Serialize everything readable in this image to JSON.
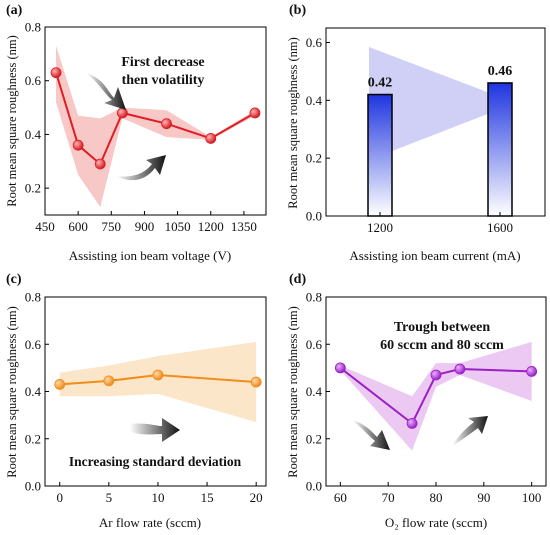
{
  "chart_data": [
    {
      "id": "a",
      "panel_label": "(a)",
      "type": "line",
      "xlabel": "Assisting ion beam voltage (V)",
      "ylabel": "Root mean square roughness (nm)",
      "xlim": [
        450,
        1450
      ],
      "ylim": [
        0.1,
        0.8
      ],
      "xticks": [
        "450",
        "600",
        "750",
        "900",
        "1050",
        "1200",
        "1350"
      ],
      "yticks": [
        "0.2",
        "0.4",
        "0.6",
        "0.8"
      ],
      "x": [
        500,
        600,
        700,
        800,
        1000,
        1200,
        1400
      ],
      "values": [
        0.63,
        0.36,
        0.29,
        0.48,
        0.44,
        0.385,
        0.48
      ],
      "band_upper": [
        0.73,
        0.47,
        0.46,
        0.5,
        0.49,
        0.39,
        0.49
      ],
      "band_lower": [
        0.52,
        0.25,
        0.13,
        0.46,
        0.39,
        0.38,
        0.47
      ],
      "color": "#e01c24",
      "band_color": "#f4b6b3",
      "annotation": [
        "First decrease",
        "then volatility"
      ]
    },
    {
      "id": "b",
      "panel_label": "(b)",
      "type": "bar",
      "xlabel": "Assisting ion beam current (mA)",
      "ylabel": "Root mean square roughness (nm)",
      "categories": [
        "1200",
        "1600"
      ],
      "values": [
        0.42,
        0.46
      ],
      "data_labels": [
        "0.42",
        "0.46"
      ],
      "ylim": [
        0.0,
        0.65
      ],
      "yticks": [
        "0.0",
        "0.2",
        "0.4",
        "0.6"
      ],
      "color": "#1f35e0",
      "band_color": "#c8c8f4"
    },
    {
      "id": "c",
      "panel_label": "(c)",
      "type": "line",
      "xlabel": "Ar flow rate (sccm)",
      "ylabel": "Root mean square roughness (nm)",
      "xlim": [
        -1.5,
        21
      ],
      "ylim": [
        0.0,
        0.8
      ],
      "xticks": [
        "0",
        "5",
        "10",
        "15",
        "20"
      ],
      "yticks": [
        "0.0",
        "0.2",
        "0.4",
        "0.6",
        "0.8"
      ],
      "x": [
        0,
        5,
        10,
        20
      ],
      "values": [
        0.43,
        0.445,
        0.47,
        0.44
      ],
      "band_upper": [
        0.48,
        0.51,
        0.55,
        0.61
      ],
      "band_lower": [
        0.38,
        0.38,
        0.39,
        0.27
      ],
      "color": "#f28c1a",
      "band_color": "#fbe2c0",
      "annotation": [
        "Increasing standard deviation"
      ]
    },
    {
      "id": "d",
      "panel_label": "(d)",
      "type": "line",
      "xlabel": "O₂ flow rate (sccm)",
      "ylabel": "Root mean square roughness (nm)",
      "xlim": [
        57,
        103
      ],
      "ylim": [
        0.0,
        0.8
      ],
      "xticks": [
        "60",
        "70",
        "80",
        "90",
        "100"
      ],
      "yticks": [
        "0.0",
        "0.2",
        "0.4",
        "0.6",
        "0.8"
      ],
      "x": [
        60,
        75,
        80,
        85,
        100
      ],
      "values": [
        0.5,
        0.265,
        0.47,
        0.495,
        0.485
      ],
      "band_upper": [
        0.51,
        0.38,
        0.52,
        0.52,
        0.61
      ],
      "band_lower": [
        0.49,
        0.15,
        0.42,
        0.47,
        0.36
      ],
      "color": "#9b1fc4",
      "band_color": "#e8c0f0",
      "annotation": [
        "Trough between",
        "60 sccm and 80 sccm"
      ]
    }
  ]
}
